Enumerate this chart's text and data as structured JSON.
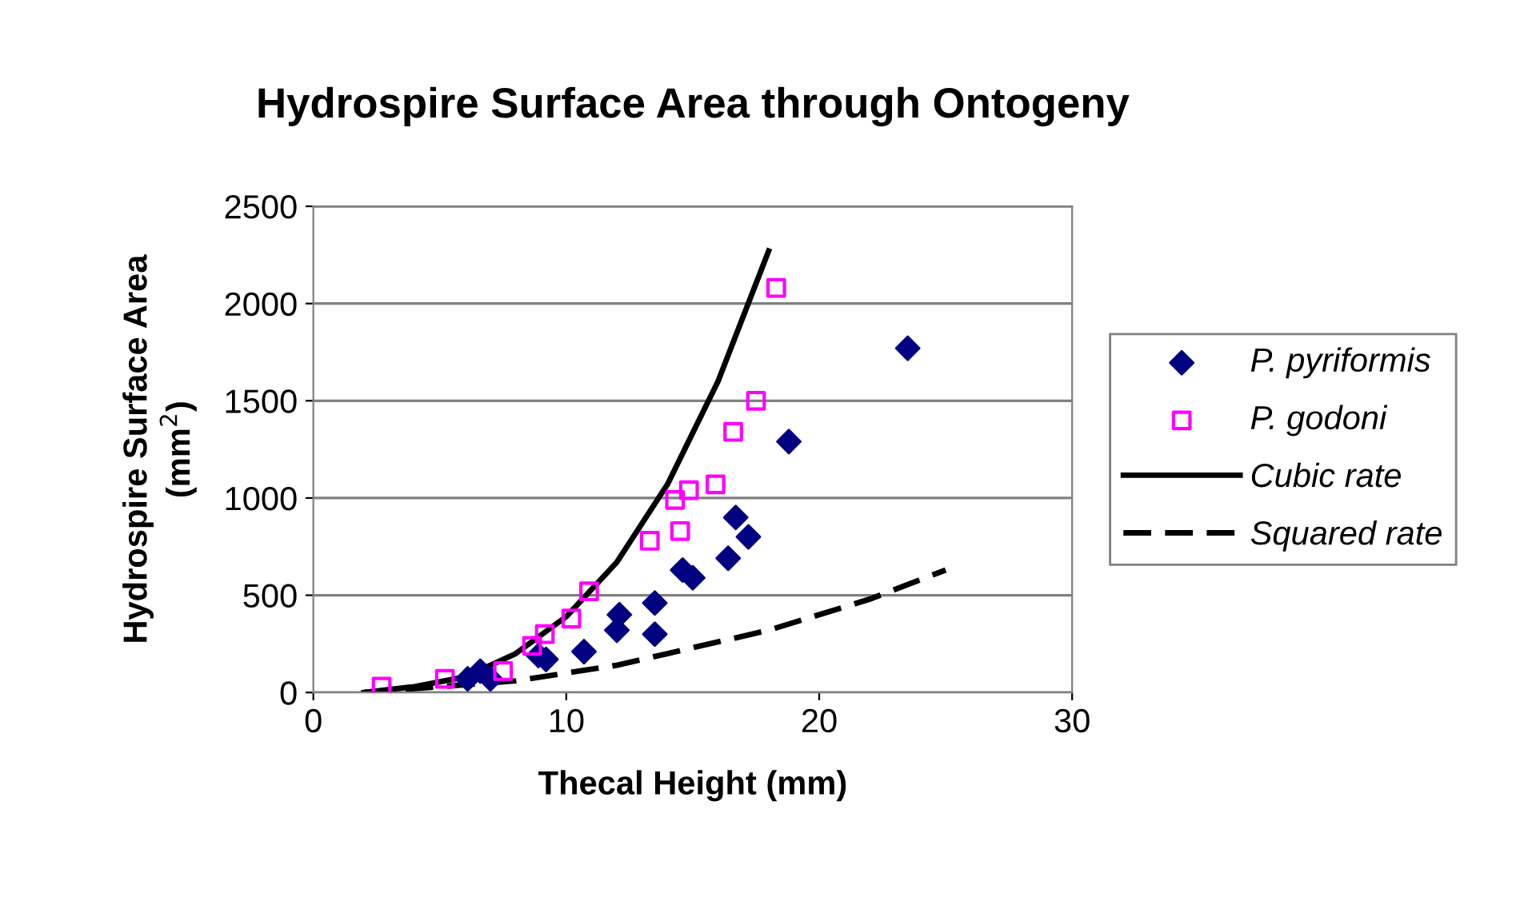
{
  "chart_data": {
    "type": "scatter",
    "title": "Hydrospire Surface Area through Ontogeny",
    "xlabel": "Thecal Height (mm)",
    "ylabel": "Hydrospire Surface Area\n(mm$^{2}$)",
    "xlim": [
      0,
      30
    ],
    "xticks": [
      0,
      10,
      20,
      30
    ],
    "ylim": [
      0,
      2500
    ],
    "yticks": [
      0,
      500,
      1000,
      1500,
      2000,
      2500
    ],
    "grid": "y",
    "legend": "right",
    "series": [
      {
        "name": "P. pyriformis",
        "color": "#000080",
        "marker": "diamond",
        "x": [
          6.1,
          6.6,
          7.0,
          8.9,
          9.2,
          10.7,
          12.1,
          12.0,
          13.5,
          13.5,
          14.6,
          15.0,
          16.7,
          17.2,
          16.4,
          18.8,
          23.5
        ],
        "values": [
          70,
          110,
          70,
          190,
          170,
          210,
          400,
          320,
          460,
          300,
          630,
          590,
          900,
          800,
          690,
          1290,
          1770
        ]
      },
      {
        "name": "P. godoni",
        "color": "#ff00ff",
        "marker": "square",
        "x": [
          2.7,
          5.2,
          7.5,
          8.65,
          9.15,
          10.2,
          10.9,
          13.3,
          14.5,
          14.3,
          14.85,
          15.9,
          16.6,
          17.5,
          18.3
        ],
        "values": [
          30,
          70,
          110,
          240,
          300,
          380,
          520,
          780,
          830,
          990,
          1040,
          1070,
          1340,
          1500,
          2080
        ]
      },
      {
        "name": "Cubic rate",
        "type": "line",
        "color": "#000000",
        "marker": "none",
        "line_style": "solid",
        "x": [
          2,
          4,
          6,
          8,
          10,
          12,
          14,
          16,
          18
        ],
        "values": [
          0,
          30,
          80,
          200,
          390,
          670,
          1070,
          1600,
          2270
        ]
      },
      {
        "name": "Squared rate",
        "type": "line",
        "color": "#000000",
        "marker": "none",
        "line_style": "dashed",
        "x": [
          2,
          5,
          8,
          10,
          12,
          14,
          16,
          18,
          20,
          22,
          25
        ],
        "values": [
          0,
          30,
          60,
          100,
          140,
          200,
          260,
          320,
          400,
          480,
          630
        ]
      }
    ]
  }
}
